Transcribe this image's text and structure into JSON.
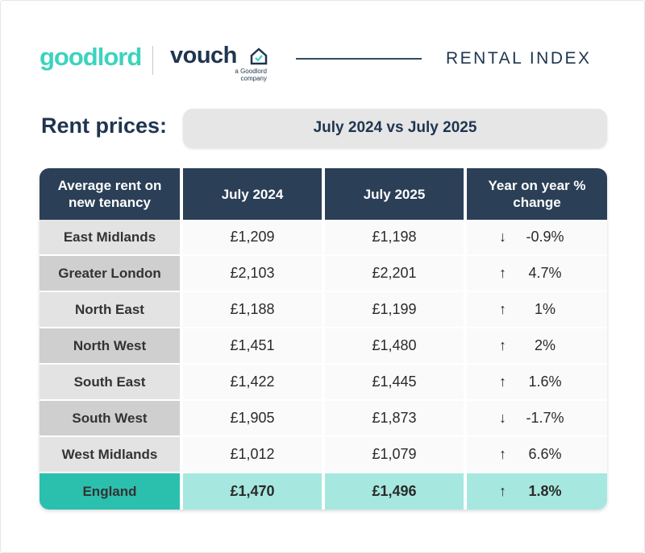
{
  "header": {
    "brand": "goodlord",
    "partner": "vouch",
    "partner_tagline": "a Goodlord company",
    "title": "RENTAL INDEX"
  },
  "subtitle": {
    "label": "Rent prices:",
    "period": "July 2024 vs July 2025"
  },
  "table": {
    "columns": [
      "Average rent on new tenancy",
      "July 2024",
      "July 2025",
      "Year on year % change"
    ],
    "rows": [
      [
        "East Midlands",
        "£1,209",
        "£1,198",
        "↓",
        "-0.9%"
      ],
      [
        "Greater London",
        "£2,103",
        "£2,201",
        "↑",
        "4.7%"
      ],
      [
        "North East",
        "£1,188",
        "£1,199",
        "↑",
        "1%"
      ],
      [
        "North West",
        "£1,451",
        "£1,480",
        "↑",
        "2%"
      ],
      [
        "South East",
        "£1,422",
        "£1,445",
        "↑",
        "1.6%"
      ],
      [
        "South West",
        "£1,905",
        "£1,873",
        "↓",
        "-1.7%"
      ],
      [
        "West Midlands",
        "£1,012",
        "£1,079",
        "↑",
        "6.6%"
      ]
    ],
    "total": [
      "England",
      "£1,470",
      "£1,496",
      "↑",
      "1.8%"
    ]
  }
}
